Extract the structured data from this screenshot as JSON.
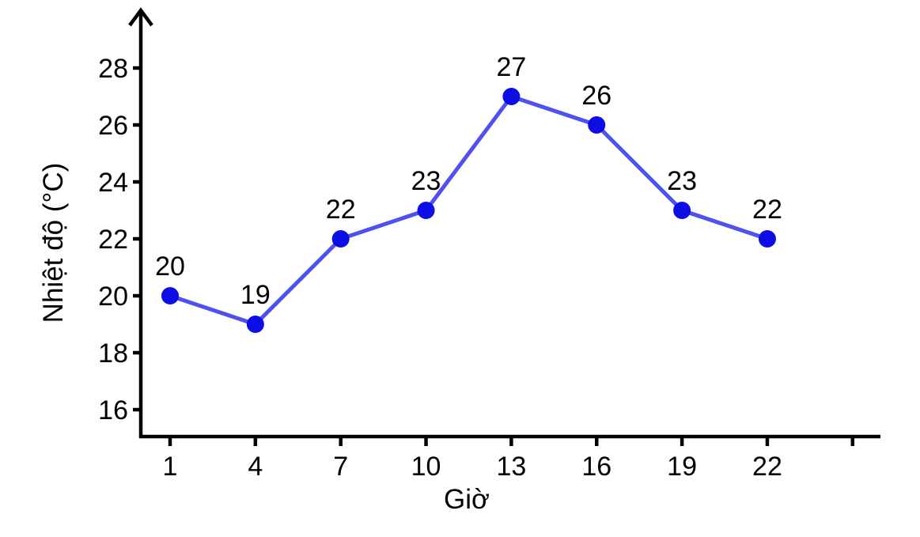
{
  "chart_data": {
    "type": "line",
    "title": "",
    "xlabel": "Giờ",
    "ylabel": "Nhiệt độ (°C)",
    "x": [
      1,
      4,
      7,
      10,
      13,
      16,
      19,
      22
    ],
    "values": [
      20,
      19,
      22,
      23,
      27,
      26,
      23,
      22
    ],
    "point_labels": [
      "20",
      "19",
      "22",
      "23",
      "27",
      "26",
      "23",
      "22"
    ],
    "xticks": [
      1,
      4,
      7,
      10,
      13,
      16,
      19,
      22,
      25
    ],
    "xtick_labels": [
      "1",
      "4",
      "7",
      "10",
      "13",
      "16",
      "19",
      "22",
      ""
    ],
    "yticks": [
      16,
      18,
      20,
      22,
      24,
      26,
      28
    ],
    "ytick_labels": [
      "16",
      "18",
      "20",
      "22",
      "24",
      "26",
      "28"
    ],
    "xlim": [
      -0.4,
      26
    ],
    "ylim": [
      15,
      30
    ],
    "grid": false,
    "legend": null,
    "y_axis_arrow": true,
    "colors": {
      "line": "#4f4ff2",
      "marker": "#0d0de6",
      "axis": "#000000",
      "text": "#000000",
      "background": "#ffffff"
    }
  }
}
